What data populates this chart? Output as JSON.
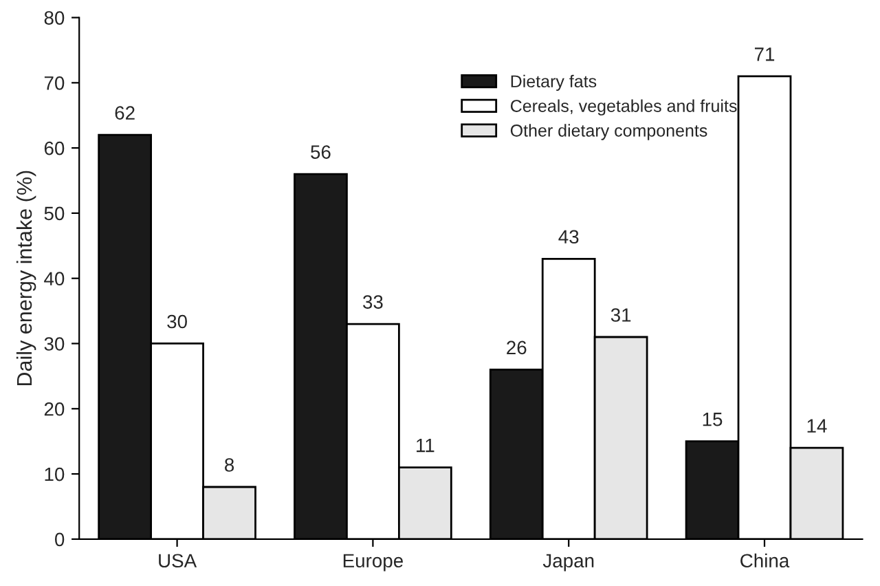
{
  "chart_data": {
    "type": "bar",
    "ylabel": "Daily energy intake (%)",
    "categories": [
      "USA",
      "Europe",
      "Japan",
      "China"
    ],
    "series": [
      {
        "name": "Dietary fats",
        "color": "#1a1a1a",
        "values": [
          62,
          56,
          26,
          15
        ]
      },
      {
        "name": "Cereals, vegetables and fruits",
        "color": "#ffffff",
        "values": [
          30,
          33,
          43,
          71
        ]
      },
      {
        "name": "Other dietary components",
        "color": "#e6e6e6",
        "values": [
          8,
          11,
          31,
          14
        ]
      }
    ],
    "ylim": [
      0,
      80
    ],
    "yticks": [
      0,
      10,
      20,
      30,
      40,
      50,
      60,
      70,
      80
    ],
    "data_labels": true,
    "legend": "top right",
    "grid": false
  }
}
